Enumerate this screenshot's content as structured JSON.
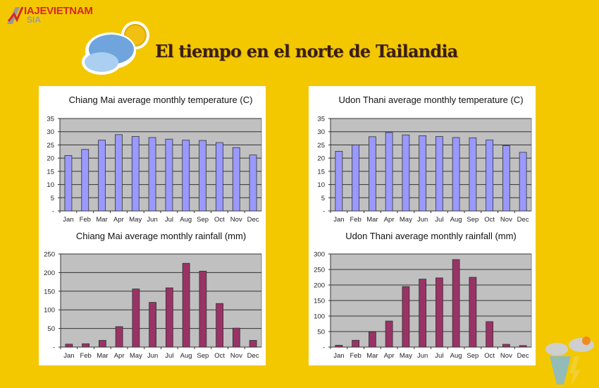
{
  "header": {
    "logo_top": "IAJEVIETNAM",
    "logo_bottom": "SIA",
    "title": "El tiempo en el norte de Tailandia",
    "weather_icon": "sun-behind-clouds-icon"
  },
  "colors": {
    "background": "#f3c800",
    "temp_bar": "#9999ff",
    "rain_bar": "#993366",
    "plot_bg": "#c0c0c0"
  },
  "chart_data": [
    {
      "type": "bar",
      "title": "Chiang Mai average monthly temperature (C)",
      "categories": [
        "Jan",
        "Feb",
        "Mar",
        "Apr",
        "May",
        "Jun",
        "Jul",
        "Aug",
        "Sep",
        "Oct",
        "Nov",
        "Dec"
      ],
      "values": [
        21,
        23.3,
        26.8,
        28.9,
        28.2,
        27.8,
        27.2,
        26.8,
        26.7,
        25.9,
        24,
        21.2
      ],
      "ylim": [
        0,
        35
      ],
      "yticks": [
        "-",
        "5",
        "10",
        "15",
        "20",
        "25",
        "30",
        "35"
      ],
      "grid": true
    },
    {
      "type": "bar",
      "title": "Chiang Mai average monthly rainfall (mm)",
      "categories": [
        "Jan",
        "Feb",
        "Mar",
        "Apr",
        "May",
        "Jun",
        "Jul",
        "Aug",
        "Sep",
        "Oct",
        "Nov",
        "Dec"
      ],
      "values": [
        8,
        9,
        18,
        55,
        156,
        120,
        159,
        225,
        204,
        117,
        51,
        18
      ],
      "ylim": [
        0,
        250
      ],
      "yticks": [
        "-",
        "50",
        "100",
        "150",
        "200",
        "250"
      ],
      "grid": true
    },
    {
      "type": "bar",
      "title": "Udon Thani average monthly temperature (C)",
      "categories": [
        "Jan",
        "Feb",
        "Mar",
        "Apr",
        "May",
        "Jun",
        "Jul",
        "Aug",
        "Sep",
        "Oct",
        "Nov",
        "Dec"
      ],
      "values": [
        22.6,
        25,
        28.1,
        29.7,
        28.8,
        28.5,
        28.2,
        27.8,
        27.7,
        26.9,
        24.7,
        22.2
      ],
      "ylim": [
        0,
        35
      ],
      "yticks": [
        "-",
        "5",
        "10",
        "15",
        "20",
        "25",
        "30",
        "35"
      ],
      "grid": true
    },
    {
      "type": "bar",
      "title": "Udon Thani average monthly rainfall (mm)",
      "categories": [
        "Jan",
        "Feb",
        "Mar",
        "Apr",
        "May",
        "Jun",
        "Jul",
        "Aug",
        "Sep",
        "Oct",
        "Nov",
        "Dec"
      ],
      "values": [
        6,
        22,
        49,
        84,
        195,
        219,
        223,
        282,
        225,
        82,
        9,
        5
      ],
      "ylim": [
        0,
        300
      ],
      "yticks": [
        "-",
        "50",
        "100",
        "150",
        "200",
        "250",
        "300"
      ],
      "grid": true
    }
  ]
}
